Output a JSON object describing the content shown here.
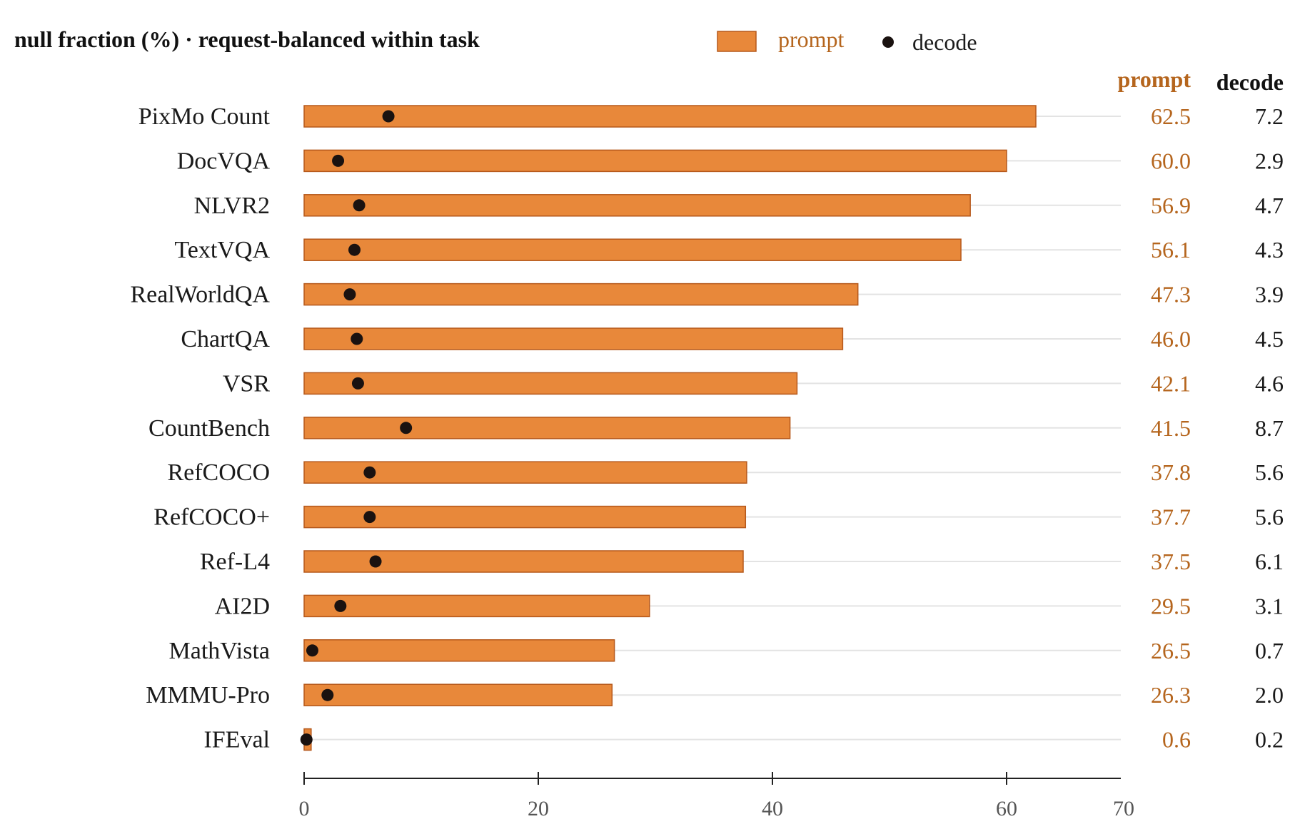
{
  "chart_data": {
    "type": "bar",
    "title": "null fraction (%) · request-balanced within task",
    "categories": [
      "PixMo Count",
      "DocVQA",
      "NLVR2",
      "TextVQA",
      "RealWorldQA",
      "ChartQA",
      "VSR",
      "CountBench",
      "RefCOCO",
      "RefCOCO+",
      "Ref-L4",
      "AI2D",
      "MathVista",
      "MMMU-Pro",
      "IFEval"
    ],
    "series": [
      {
        "name": "prompt",
        "kind": "bar",
        "values": [
          62.5,
          60.0,
          56.9,
          56.1,
          47.3,
          46.0,
          42.1,
          41.5,
          37.8,
          37.7,
          37.5,
          29.5,
          26.5,
          26.3,
          0.6
        ]
      },
      {
        "name": "decode",
        "kind": "point",
        "values": [
          7.2,
          2.9,
          4.7,
          4.3,
          3.9,
          4.5,
          4.6,
          8.7,
          5.6,
          5.6,
          6.1,
          3.1,
          0.7,
          2.0,
          0.2
        ]
      }
    ],
    "value_labels": {
      "prompt": [
        "62.5",
        "60.0",
        "56.9",
        "56.1",
        "47.3",
        "46.0",
        "42.1",
        "41.5",
        "37.8",
        "37.7",
        "37.5",
        "29.5",
        "26.5",
        "26.3",
        "0.6"
      ],
      "decode": [
        "7.2",
        "2.9",
        "4.7",
        "4.3",
        "3.9",
        "4.5",
        "4.6",
        "8.7",
        "5.6",
        "5.6",
        "6.1",
        "3.1",
        "0.7",
        "2.0",
        "0.2"
      ]
    },
    "column_headers": {
      "prompt": "prompt",
      "decode": "decode"
    },
    "legend": {
      "placement": "top",
      "items": [
        "prompt",
        "decode"
      ]
    },
    "xlim": [
      0,
      70
    ],
    "xticks": [
      0,
      20,
      40,
      60,
      70
    ],
    "xtick_labels": [
      "0",
      "20",
      "40",
      "60",
      "70"
    ],
    "orientation": "horizontal",
    "grid": true,
    "colors": {
      "prompt_fill": "#E8883A",
      "prompt_stroke": "#B5581B",
      "prompt_text": "#B5651D",
      "decode": "#1A1210",
      "grid": "#E3E3E3",
      "axis": "#222222"
    }
  }
}
